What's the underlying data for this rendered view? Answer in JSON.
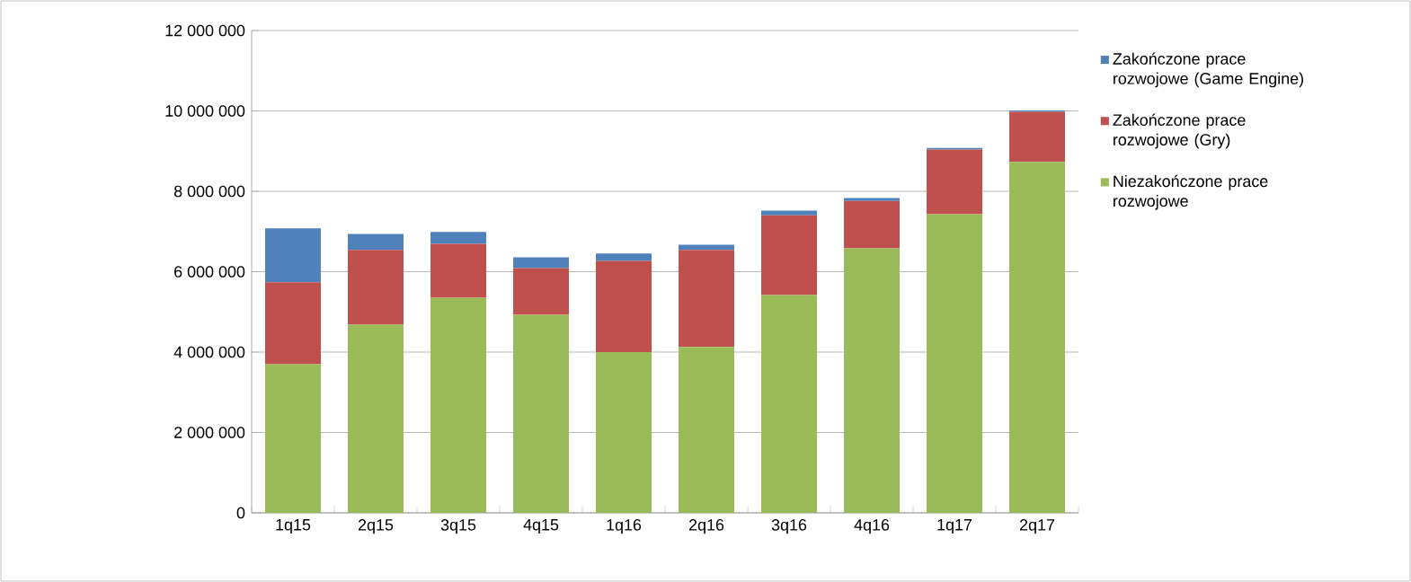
{
  "chart_data": {
    "type": "bar",
    "stacked": true,
    "categories": [
      "1q15",
      "2q15",
      "3q15",
      "4q15",
      "1q16",
      "2q16",
      "3q16",
      "4q16",
      "1q17",
      "2q17"
    ],
    "series": [
      {
        "name": "Niezakończone prace rozwojowe",
        "color": "#9bbb59",
        "values": [
          3700000,
          4680000,
          5350000,
          4930000,
          4000000,
          4130000,
          5420000,
          6580000,
          7430000,
          8730000
        ]
      },
      {
        "name": "Zakończone prace rozwojowe (Gry)",
        "color": "#c0504d",
        "values": [
          2040000,
          1860000,
          1340000,
          1160000,
          2270000,
          2410000,
          1980000,
          1180000,
          1610000,
          1250000
        ]
      },
      {
        "name": "Zakończone prace rozwojowe (Game Engine)",
        "color": "#4f81bd",
        "values": [
          1340000,
          400000,
          300000,
          270000,
          180000,
          130000,
          120000,
          70000,
          40000,
          30000
        ]
      }
    ],
    "ylim": [
      0,
      12000000
    ],
    "yticks": [
      {
        "value": 0,
        "label": "0"
      },
      {
        "value": 2000000,
        "label": "2 000 000"
      },
      {
        "value": 4000000,
        "label": "4 000 000"
      },
      {
        "value": 6000000,
        "label": "6 000 000"
      },
      {
        "value": 8000000,
        "label": "8 000 000"
      },
      {
        "value": 10000000,
        "label": "10 000 000"
      },
      {
        "value": 12000000,
        "label": "12 000 000"
      }
    ],
    "grid": "y",
    "legend": "right"
  }
}
